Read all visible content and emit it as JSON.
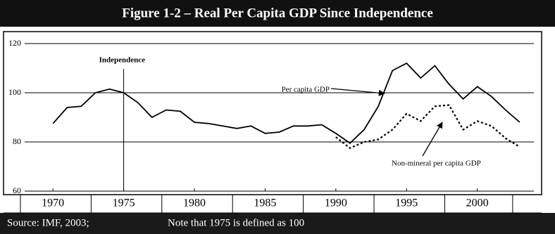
{
  "chart_data": {
    "type": "line",
    "title": "Figure 1-2 – Real Per Capita GDP Since Independence",
    "x": [
      1970,
      1971,
      1972,
      1973,
      1974,
      1975,
      1976,
      1977,
      1978,
      1979,
      1980,
      1981,
      1982,
      1983,
      1984,
      1985,
      1986,
      1987,
      1988,
      1989,
      1990,
      1991,
      1992,
      1993,
      1994,
      1995,
      1996,
      1997,
      1998,
      1999,
      2000,
      2001,
      2002,
      2003
    ],
    "series": [
      {
        "name": "Per capita GDP",
        "color": "#000000",
        "dash": false,
        "values": [
          87.5,
          94,
          94.5,
          100,
          101.5,
          100,
          96,
          90,
          93,
          92.5,
          88,
          87.5,
          86.5,
          85.5,
          86.5,
          83.5,
          84,
          86.5,
          86.5,
          87,
          83.5,
          79.5,
          85,
          94.5,
          109,
          112,
          106,
          111,
          103.5,
          97.5,
          102.5,
          98.5,
          93,
          88
        ]
      },
      {
        "name": "Non-mineral per capita GDP",
        "color": "#000000",
        "dash": true,
        "values": [
          null,
          null,
          null,
          null,
          null,
          null,
          null,
          null,
          null,
          null,
          null,
          null,
          null,
          null,
          null,
          null,
          null,
          null,
          null,
          null,
          82,
          77.5,
          80,
          81,
          85,
          91.5,
          88.5,
          94.5,
          95,
          85,
          88.5,
          86.5,
          81.5,
          78
        ]
      }
    ],
    "annotations": [
      {
        "text": "Independence",
        "x": 1975
      }
    ],
    "xlim": [
      1968,
      2004
    ],
    "xticks": [
      1970,
      1975,
      1980,
      1985,
      1990,
      1995,
      2000
    ],
    "ylim": [
      60,
      120
    ],
    "yticks": [
      60,
      80,
      100,
      120
    ],
    "grid": true,
    "source": "Source: IMF, 2003;",
    "note": "Note that 1975 is defined as  100"
  }
}
